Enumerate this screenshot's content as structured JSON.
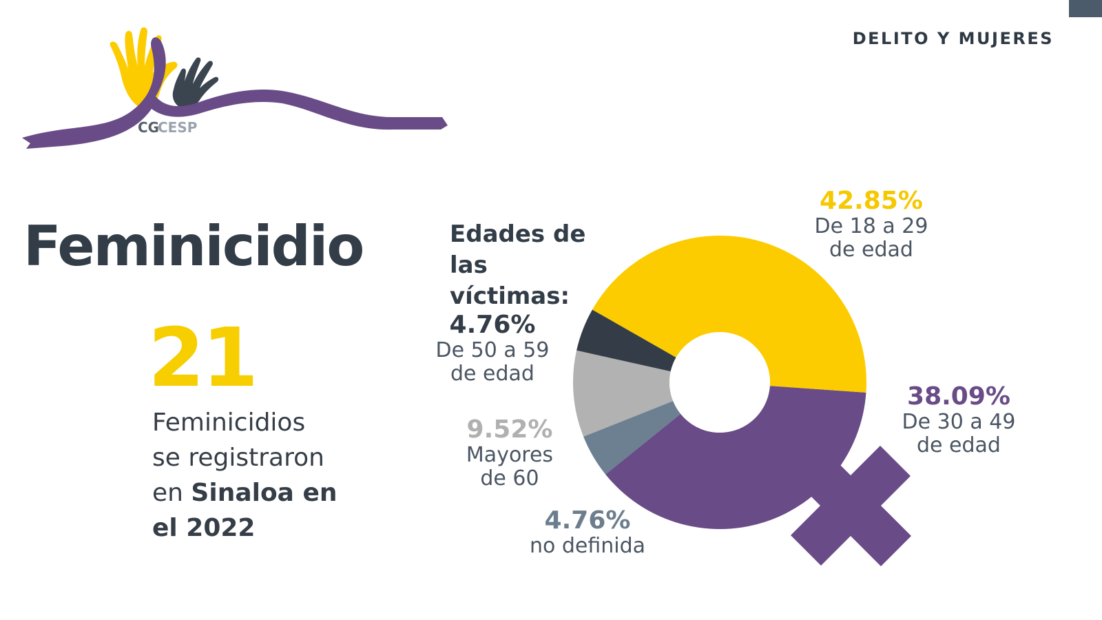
{
  "header": {
    "section_label": "DELITO Y MUJERES",
    "logo_text_a": "CG",
    "logo_text_b": "CESP"
  },
  "main": {
    "title": "Feminicidio",
    "big_number": "21",
    "desc_line1": "Feminicidios",
    "desc_line2": "se registraron",
    "desc_line3_plain": "en ",
    "desc_line3_bold": "Sinaloa en",
    "desc_line4_bold": "el 2022"
  },
  "chart_data": {
    "type": "pie",
    "title": "Edades de las víctimas:",
    "donut": true,
    "slices": [
      {
        "label": "42.85%",
        "value": 42.85,
        "caption": "De 18 a 29\nde edad",
        "color": "#fccc00",
        "label_color": "#f5c800"
      },
      {
        "label": "38.09%",
        "value": 38.09,
        "caption": "De 30 a 49\nde edad",
        "color": "#694b87",
        "label_color": "#694b87"
      },
      {
        "label": "4.76%",
        "value": 4.76,
        "caption": "no definida",
        "color": "#6c8091",
        "label_color": "#6c7d8d"
      },
      {
        "label": "9.52%",
        "value": 9.52,
        "caption": "Mayores\nde 60",
        "color": "#b2b2b2",
        "label_color": "#b0b0b0"
      },
      {
        "label": "4.76%",
        "value": 4.76,
        "caption": "De 50 a 59\nde edad",
        "color": "#343d47",
        "label_color": "#343d47"
      }
    ]
  },
  "colors": {
    "dark": "#333d48",
    "yellow": "#f7ce00",
    "purple": "#694b87",
    "corner": "#4c5b6b"
  }
}
